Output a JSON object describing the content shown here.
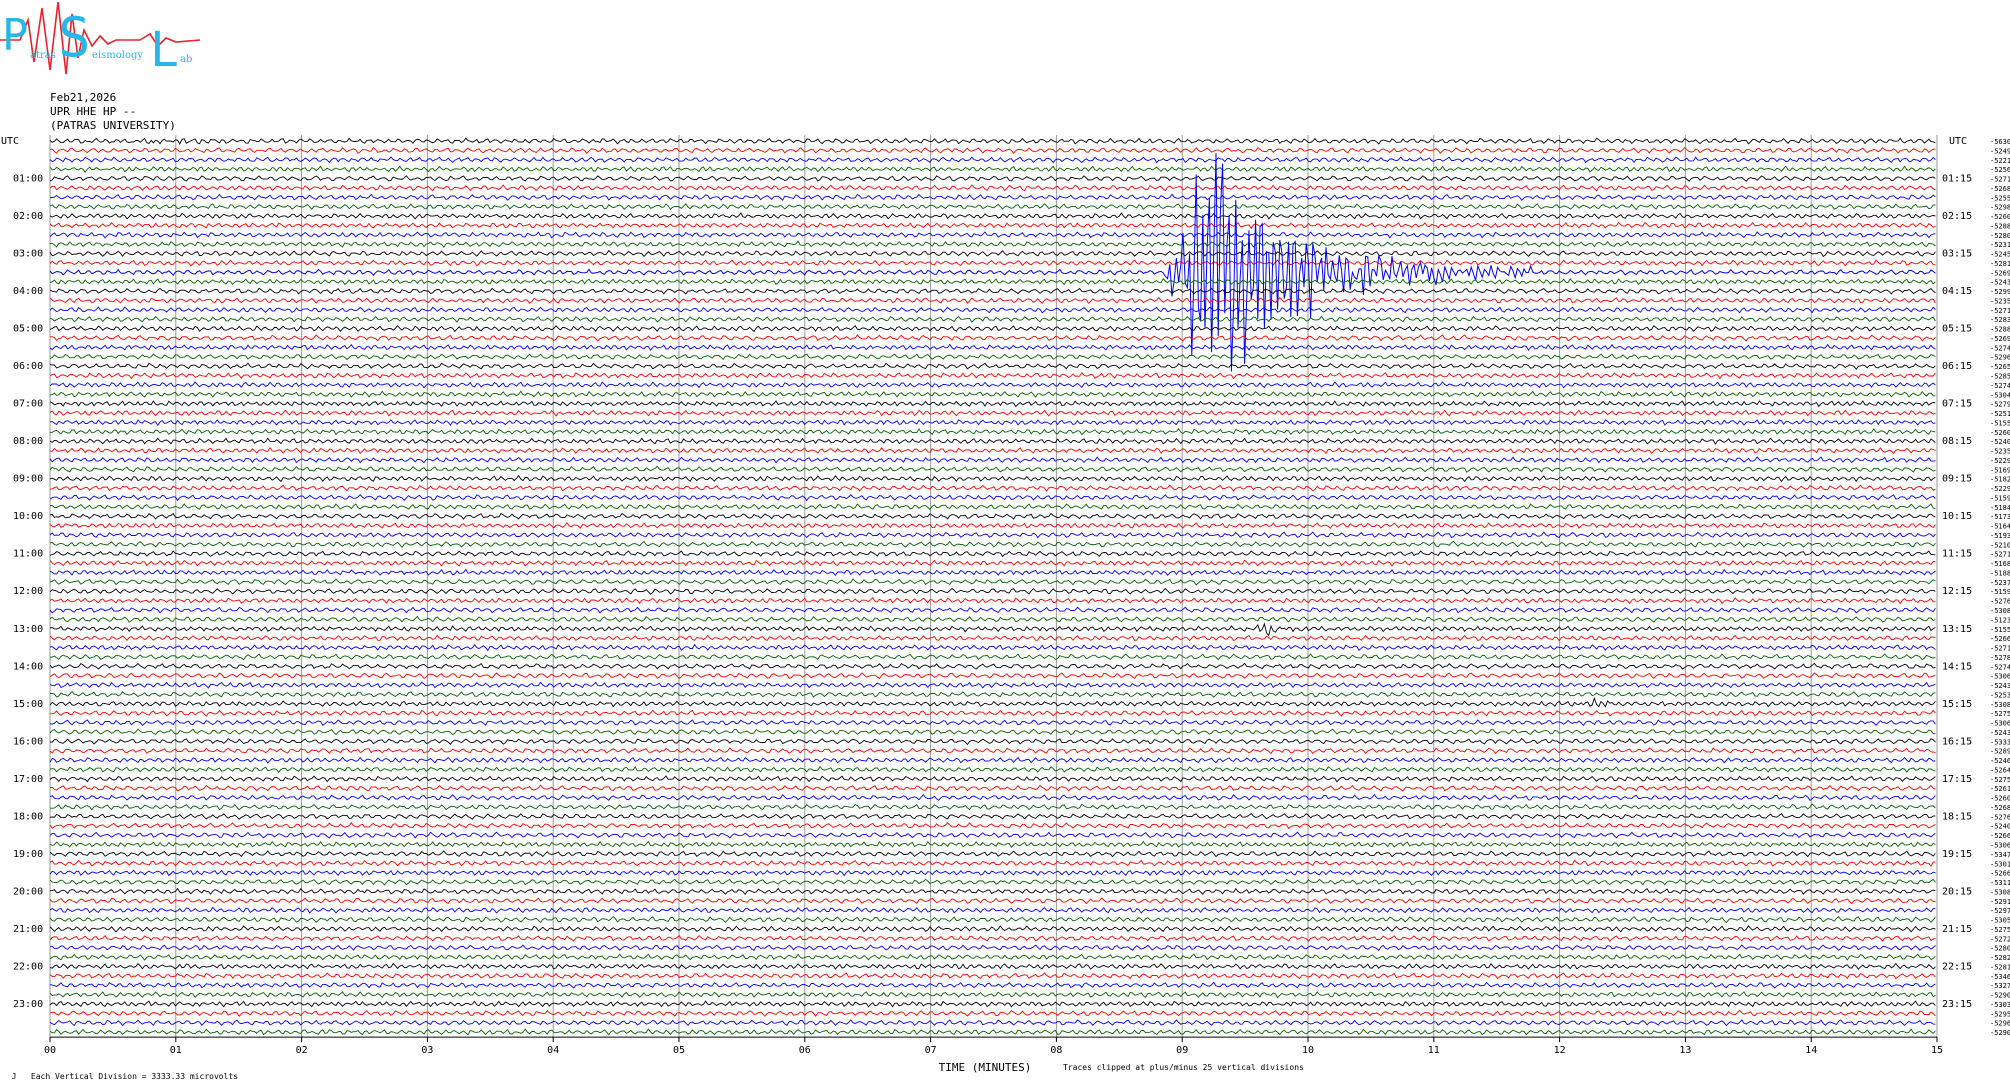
{
  "logo": {
    "big_letters": [
      "P",
      "S",
      "L"
    ],
    "small_words": [
      "atras",
      "eismology",
      "ab"
    ],
    "colors": {
      "letters": "#29b6e8",
      "signal": "#e8232a"
    }
  },
  "header": {
    "date": "Feb21,2026",
    "station": "UPR HHE HP --",
    "institution": "(PATRAS UNIVERSITY)"
  },
  "footer": {
    "mark": "J",
    "scale_note": "Each Vertical Division = 3333.33 microvolts",
    "clip_note": "Traces clipped at plus/minus 25 vertical divisions"
  },
  "chart_data": {
    "type": "line",
    "title": "",
    "xlabel": "TIME (MINUTES)",
    "ylabel": "",
    "xlim": [
      0,
      15
    ],
    "x_tick_labels": [
      "00",
      "01",
      "02",
      "03",
      "04",
      "05",
      "06",
      "07",
      "08",
      "09",
      "10",
      "11",
      "12",
      "13",
      "14",
      "15"
    ],
    "left_axis_title": "UTC",
    "right_axis_title": "UTC",
    "left_hour_labels": [
      "01:00",
      "02:00",
      "03:00",
      "04:00",
      "05:00",
      "06:00",
      "07:00",
      "08:00",
      "09:00",
      "10:00",
      "11:00",
      "12:00",
      "13:00",
      "14:00",
      "15:00",
      "16:00",
      "17:00",
      "18:00",
      "19:00",
      "20:00",
      "21:00",
      "22:00",
      "23:00"
    ],
    "right_hour_labels": [
      "01:15",
      "02:15",
      "03:15",
      "04:15",
      "05:15",
      "06:15",
      "07:15",
      "08:15",
      "09:15",
      "10:15",
      "11:15",
      "12:15",
      "13:15",
      "14:15",
      "15:15",
      "16:15",
      "17:15",
      "18:15",
      "19:15",
      "20:15",
      "21:15",
      "22:15",
      "23:15"
    ],
    "trace_minutes": 15,
    "trace_count": 96,
    "trace_colors": [
      "#000000",
      "#ff0000",
      "#0000ff",
      "#006400"
    ],
    "trace_offsets": [
      -5630,
      -5249,
      -5221,
      -5256,
      -5271,
      -5268,
      -5255,
      -5298,
      -5260,
      -5288,
      -5280,
      -5231,
      -5245,
      -5281,
      -5269,
      -5243,
      -5299,
      -5235,
      -5271,
      -5283,
      -5288,
      -5269,
      -5274,
      -5296,
      -5265,
      -5285,
      -5274,
      -5304,
      -5279,
      -5251,
      -5155,
      -5260,
      -5240,
      -5235,
      -5229,
      -5169,
      -5182,
      -5229,
      -5159,
      -5184,
      -5173,
      -5164,
      -5193,
      -5210,
      -5271,
      -5168,
      -5188,
      -5237,
      -5159,
      -5276,
      -5308,
      -5123,
      -5155,
      -5266,
      -5271,
      -5278,
      -5274,
      -5306,
      -5243,
      -5253,
      -5308,
      -5275,
      -5306,
      -5243,
      -5333,
      -5289,
      -5246,
      -5264,
      -5275,
      -5261,
      -5260,
      -5268,
      -5276,
      -5240,
      -5266,
      -5306,
      -5347,
      -5301,
      -5266,
      -5311,
      -5308,
      -5291,
      -5297,
      -5305,
      -5275,
      -5272,
      -5280,
      -5282,
      -5281,
      -5346,
      -5327,
      -5290,
      -5303,
      -5295,
      -5296,
      -5290
    ],
    "events": [
      {
        "trace": 14,
        "start_min": 8.85,
        "peak_min": 9.2,
        "end_min": 11.8,
        "peak_divisions": 25
      },
      {
        "trace": 0,
        "start_min": 0.2,
        "peak_min": 0.9,
        "end_min": 2.3,
        "peak_divisions": 0.6
      },
      {
        "trace": 52,
        "start_min": 9.5,
        "peak_min": 9.7,
        "end_min": 10.0,
        "peak_divisions": 1.2
      },
      {
        "trace": 60,
        "start_min": 12.0,
        "peak_min": 12.3,
        "end_min": 12.6,
        "peak_divisions": 1.0
      }
    ]
  }
}
